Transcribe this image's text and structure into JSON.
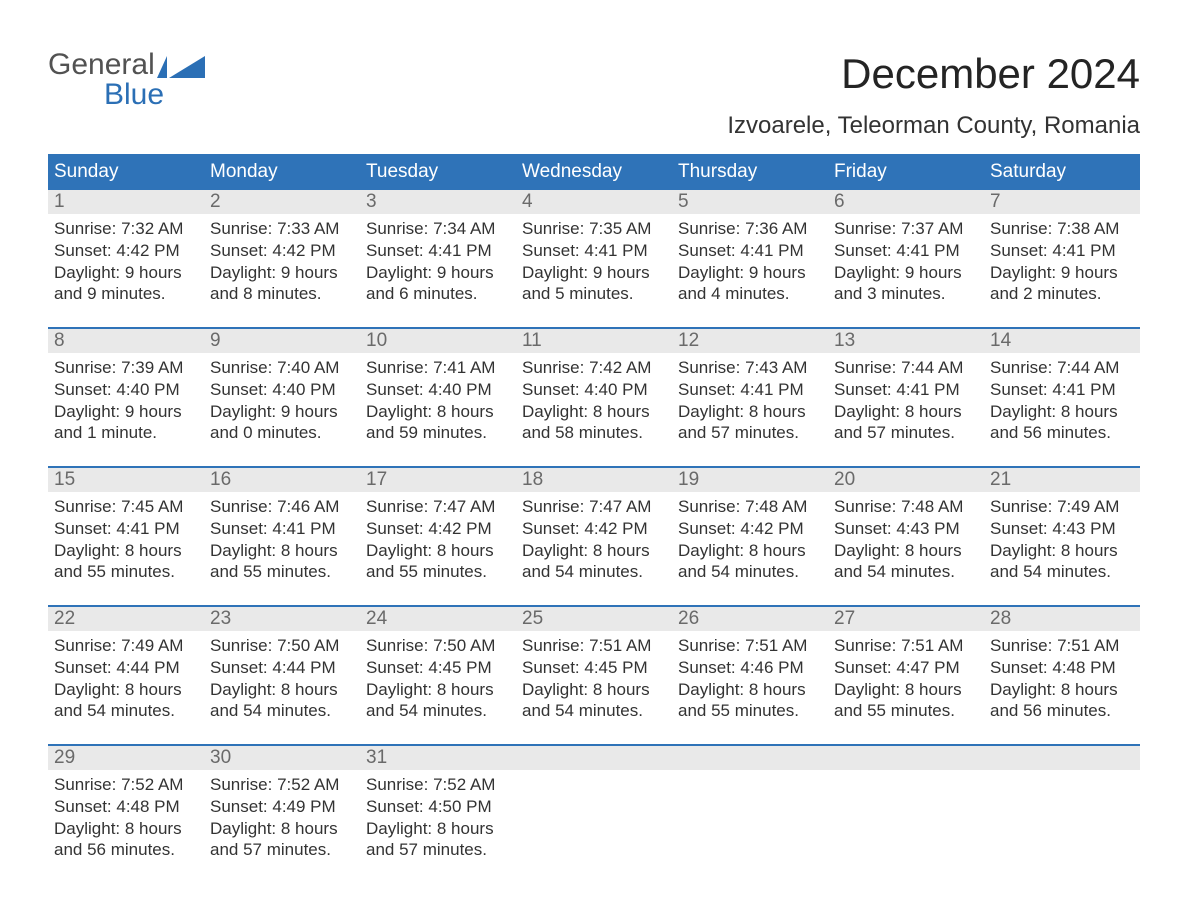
{
  "colors": {
    "header_bg": "#2f73b8",
    "header_fg": "#ffffff",
    "daynum_bg": "#e9e9e9",
    "daynum_fg": "#6a6a6a",
    "week_border": "#2f73b8",
    "text": "#333333",
    "logo_dark": "#525252",
    "logo_blue": "#2b6fb5",
    "title": "#242424"
  },
  "logo": {
    "word1": "General",
    "word2": "Blue"
  },
  "month_title": "December 2024",
  "location": "Izvoarele, Teleorman County, Romania",
  "weekdays": [
    "Sunday",
    "Monday",
    "Tuesday",
    "Wednesday",
    "Thursday",
    "Friday",
    "Saturday"
  ],
  "labels": {
    "sunrise": "Sunrise: ",
    "sunset": "Sunset: ",
    "daylight": "Daylight: "
  },
  "weeks": [
    [
      {
        "n": "1",
        "sunrise": "7:32 AM",
        "sunset": "4:42 PM",
        "day_l1": "9 hours",
        "day_l2": "and 9 minutes."
      },
      {
        "n": "2",
        "sunrise": "7:33 AM",
        "sunset": "4:42 PM",
        "day_l1": "9 hours",
        "day_l2": "and 8 minutes."
      },
      {
        "n": "3",
        "sunrise": "7:34 AM",
        "sunset": "4:41 PM",
        "day_l1": "9 hours",
        "day_l2": "and 6 minutes."
      },
      {
        "n": "4",
        "sunrise": "7:35 AM",
        "sunset": "4:41 PM",
        "day_l1": "9 hours",
        "day_l2": "and 5 minutes."
      },
      {
        "n": "5",
        "sunrise": "7:36 AM",
        "sunset": "4:41 PM",
        "day_l1": "9 hours",
        "day_l2": "and 4 minutes."
      },
      {
        "n": "6",
        "sunrise": "7:37 AM",
        "sunset": "4:41 PM",
        "day_l1": "9 hours",
        "day_l2": "and 3 minutes."
      },
      {
        "n": "7",
        "sunrise": "7:38 AM",
        "sunset": "4:41 PM",
        "day_l1": "9 hours",
        "day_l2": "and 2 minutes."
      }
    ],
    [
      {
        "n": "8",
        "sunrise": "7:39 AM",
        "sunset": "4:40 PM",
        "day_l1": "9 hours",
        "day_l2": "and 1 minute."
      },
      {
        "n": "9",
        "sunrise": "7:40 AM",
        "sunset": "4:40 PM",
        "day_l1": "9 hours",
        "day_l2": "and 0 minutes."
      },
      {
        "n": "10",
        "sunrise": "7:41 AM",
        "sunset": "4:40 PM",
        "day_l1": "8 hours",
        "day_l2": "and 59 minutes."
      },
      {
        "n": "11",
        "sunrise": "7:42 AM",
        "sunset": "4:40 PM",
        "day_l1": "8 hours",
        "day_l2": "and 58 minutes."
      },
      {
        "n": "12",
        "sunrise": "7:43 AM",
        "sunset": "4:41 PM",
        "day_l1": "8 hours",
        "day_l2": "and 57 minutes."
      },
      {
        "n": "13",
        "sunrise": "7:44 AM",
        "sunset": "4:41 PM",
        "day_l1": "8 hours",
        "day_l2": "and 57 minutes."
      },
      {
        "n": "14",
        "sunrise": "7:44 AM",
        "sunset": "4:41 PM",
        "day_l1": "8 hours",
        "day_l2": "and 56 minutes."
      }
    ],
    [
      {
        "n": "15",
        "sunrise": "7:45 AM",
        "sunset": "4:41 PM",
        "day_l1": "8 hours",
        "day_l2": "and 55 minutes."
      },
      {
        "n": "16",
        "sunrise": "7:46 AM",
        "sunset": "4:41 PM",
        "day_l1": "8 hours",
        "day_l2": "and 55 minutes."
      },
      {
        "n": "17",
        "sunrise": "7:47 AM",
        "sunset": "4:42 PM",
        "day_l1": "8 hours",
        "day_l2": "and 55 minutes."
      },
      {
        "n": "18",
        "sunrise": "7:47 AM",
        "sunset": "4:42 PM",
        "day_l1": "8 hours",
        "day_l2": "and 54 minutes."
      },
      {
        "n": "19",
        "sunrise": "7:48 AM",
        "sunset": "4:42 PM",
        "day_l1": "8 hours",
        "day_l2": "and 54 minutes."
      },
      {
        "n": "20",
        "sunrise": "7:48 AM",
        "sunset": "4:43 PM",
        "day_l1": "8 hours",
        "day_l2": "and 54 minutes."
      },
      {
        "n": "21",
        "sunrise": "7:49 AM",
        "sunset": "4:43 PM",
        "day_l1": "8 hours",
        "day_l2": "and 54 minutes."
      }
    ],
    [
      {
        "n": "22",
        "sunrise": "7:49 AM",
        "sunset": "4:44 PM",
        "day_l1": "8 hours",
        "day_l2": "and 54 minutes."
      },
      {
        "n": "23",
        "sunrise": "7:50 AM",
        "sunset": "4:44 PM",
        "day_l1": "8 hours",
        "day_l2": "and 54 minutes."
      },
      {
        "n": "24",
        "sunrise": "7:50 AM",
        "sunset": "4:45 PM",
        "day_l1": "8 hours",
        "day_l2": "and 54 minutes."
      },
      {
        "n": "25",
        "sunrise": "7:51 AM",
        "sunset": "4:45 PM",
        "day_l1": "8 hours",
        "day_l2": "and 54 minutes."
      },
      {
        "n": "26",
        "sunrise": "7:51 AM",
        "sunset": "4:46 PM",
        "day_l1": "8 hours",
        "day_l2": "and 55 minutes."
      },
      {
        "n": "27",
        "sunrise": "7:51 AM",
        "sunset": "4:47 PM",
        "day_l1": "8 hours",
        "day_l2": "and 55 minutes."
      },
      {
        "n": "28",
        "sunrise": "7:51 AM",
        "sunset": "4:48 PM",
        "day_l1": "8 hours",
        "day_l2": "and 56 minutes."
      }
    ],
    [
      {
        "n": "29",
        "sunrise": "7:52 AM",
        "sunset": "4:48 PM",
        "day_l1": "8 hours",
        "day_l2": "and 56 minutes."
      },
      {
        "n": "30",
        "sunrise": "7:52 AM",
        "sunset": "4:49 PM",
        "day_l1": "8 hours",
        "day_l2": "and 57 minutes."
      },
      {
        "n": "31",
        "sunrise": "7:52 AM",
        "sunset": "4:50 PM",
        "day_l1": "8 hours",
        "day_l2": "and 57 minutes."
      },
      {
        "blank": true
      },
      {
        "blank": true
      },
      {
        "blank": true
      },
      {
        "blank": true
      }
    ]
  ]
}
